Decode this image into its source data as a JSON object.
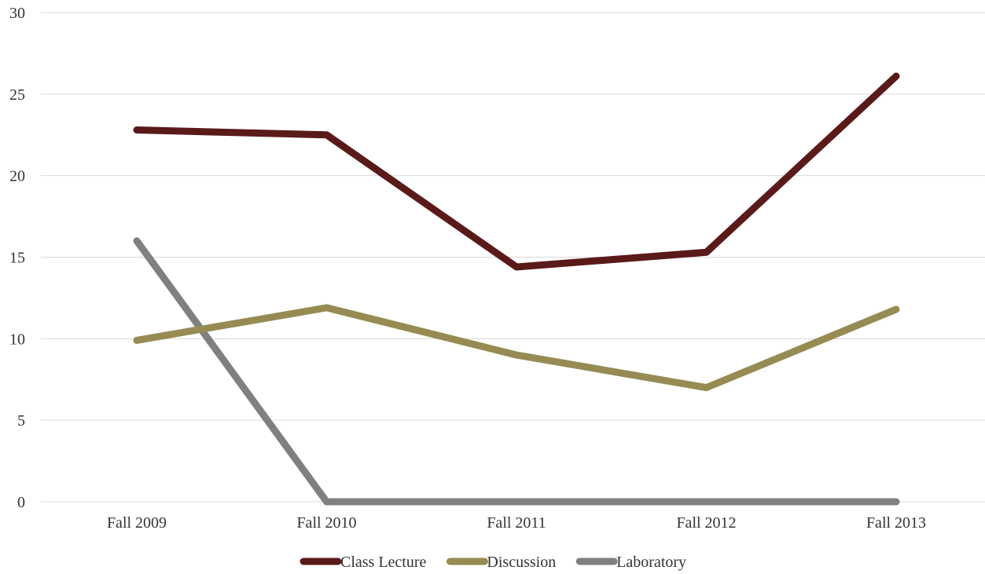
{
  "chart_data": {
    "type": "line",
    "title": "",
    "xlabel": "",
    "ylabel": "",
    "categories": [
      "Fall 2009",
      "Fall 2010",
      "Fall 2011",
      "Fall 2012",
      "Fall 2013"
    ],
    "ylim": [
      0,
      30
    ],
    "yticks": [
      "0",
      "5",
      "10",
      "15",
      "20",
      "25",
      "30"
    ],
    "grid": true,
    "legend_position": "bottom",
    "series": [
      {
        "name": "Class Lecture",
        "color": "#5a1a1a",
        "values": [
          22.8,
          22.5,
          14.4,
          15.3,
          26.1
        ]
      },
      {
        "name": "Discussion",
        "color": "#968b52",
        "values": [
          9.9,
          11.9,
          9.0,
          7.0,
          11.8
        ]
      },
      {
        "name": "Laboratory",
        "color": "#808080",
        "values": [
          16.0,
          0,
          0,
          0,
          0
        ]
      }
    ]
  }
}
